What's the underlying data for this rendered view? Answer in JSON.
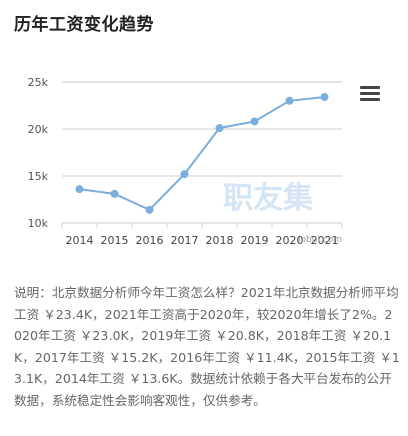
{
  "page": {
    "title": "历年工资变化趋势"
  },
  "chart_data": {
    "type": "line",
    "categories": [
      "2014",
      "2015",
      "2016",
      "2017",
      "2018",
      "2019",
      "2020",
      "2021"
    ],
    "series": [
      {
        "values": [
          13.6,
          13.1,
          11.4,
          15.2,
          20.1,
          20.8,
          23.0,
          23.4
        ]
      }
    ],
    "y_ticks": [
      "10k",
      "15k",
      "20k",
      "25k"
    ],
    "ylim": [
      10,
      25
    ],
    "grid": true,
    "colors": {
      "line": "#7aaedc",
      "point": "#7aaedc",
      "grid": "#cccccc"
    },
    "watermark": "职友集",
    "watermark_url": "jobui.com"
  },
  "description": "说明：北京数据分析师今年工资怎么样？2021年北京数据分析师平均工资 ￥23.4K，2021年工资高于2020年，较2020年增长了2%。2020年工资 ￥23.0K，2019年工资 ￥20.8K，2018年工资 ￥20.1K，2017年工资 ￥15.2K，2016年工资 ￥11.4K，2015年工资 ￥13.1K，2014年工资 ￥13.6K。数据统计依赖于各大平台发布的公开数据，系统稳定性会影响客观性，仅供参考。"
}
